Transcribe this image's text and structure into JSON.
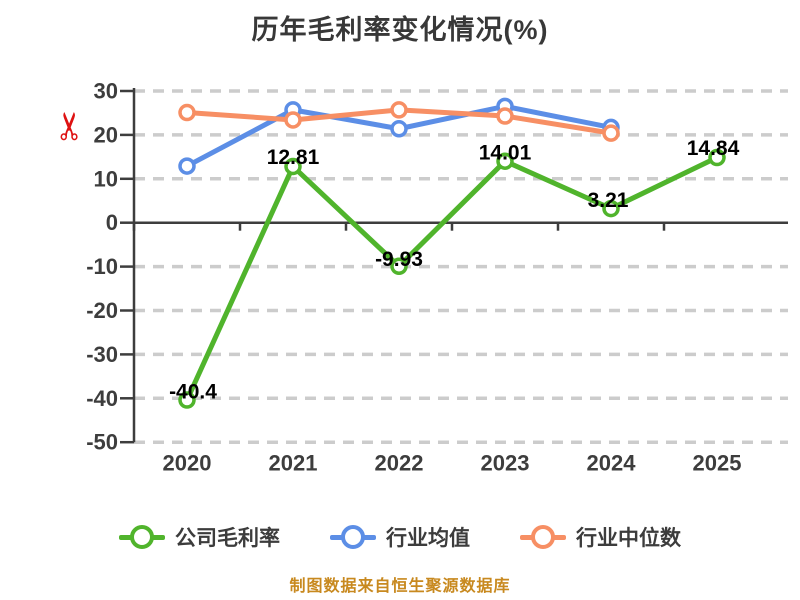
{
  "title": "历年毛利率变化情况(%)",
  "footer_note": "制图数据来自恒生聚源数据库",
  "icons": {
    "y_axis_mark": "scissors",
    "y_axis_mark_glyph": "✂",
    "y_axis_mark_color": "#de1212"
  },
  "colors": {
    "background": "#ffffff",
    "title_text": "#383838",
    "axis": "#3d3d3d",
    "tick_label": "#3d3d3d",
    "gridline": "#cccccc",
    "value_label": "#000000",
    "footer_text": "#c8891f"
  },
  "chart_data": {
    "type": "line",
    "title": "历年毛利率变化情况(%)",
    "categories": [
      "2020",
      "2021",
      "2022",
      "2023",
      "2024",
      "2025"
    ],
    "series": [
      {
        "name": "公司毛利率",
        "color": "#50b42c",
        "values": [
          -40.4,
          12.81,
          -9.93,
          14.01,
          3.21,
          14.84
        ],
        "labels": [
          "-40.4",
          "12.81",
          "-9.93",
          "14.01",
          "3.21",
          "14.84"
        ]
      },
      {
        "name": "行业均值",
        "color": "#5c8ee6",
        "values": [
          12.9,
          25.7,
          21.4,
          26.5,
          21.7,
          null
        ]
      },
      {
        "name": "行业中位数",
        "color": "#f78f64",
        "values": [
          25.1,
          23.4,
          25.7,
          24.3,
          20.4,
          null
        ]
      }
    ],
    "ylim": [
      -50,
      30
    ],
    "yticks": [
      30,
      20,
      10,
      0,
      -10,
      -20,
      -30,
      -40,
      -50
    ],
    "xlabel": "",
    "ylabel": "",
    "grid": "horizontal-dashed",
    "zero_line": true,
    "legend_position": "bottom",
    "marker": "circle-white-fill"
  }
}
